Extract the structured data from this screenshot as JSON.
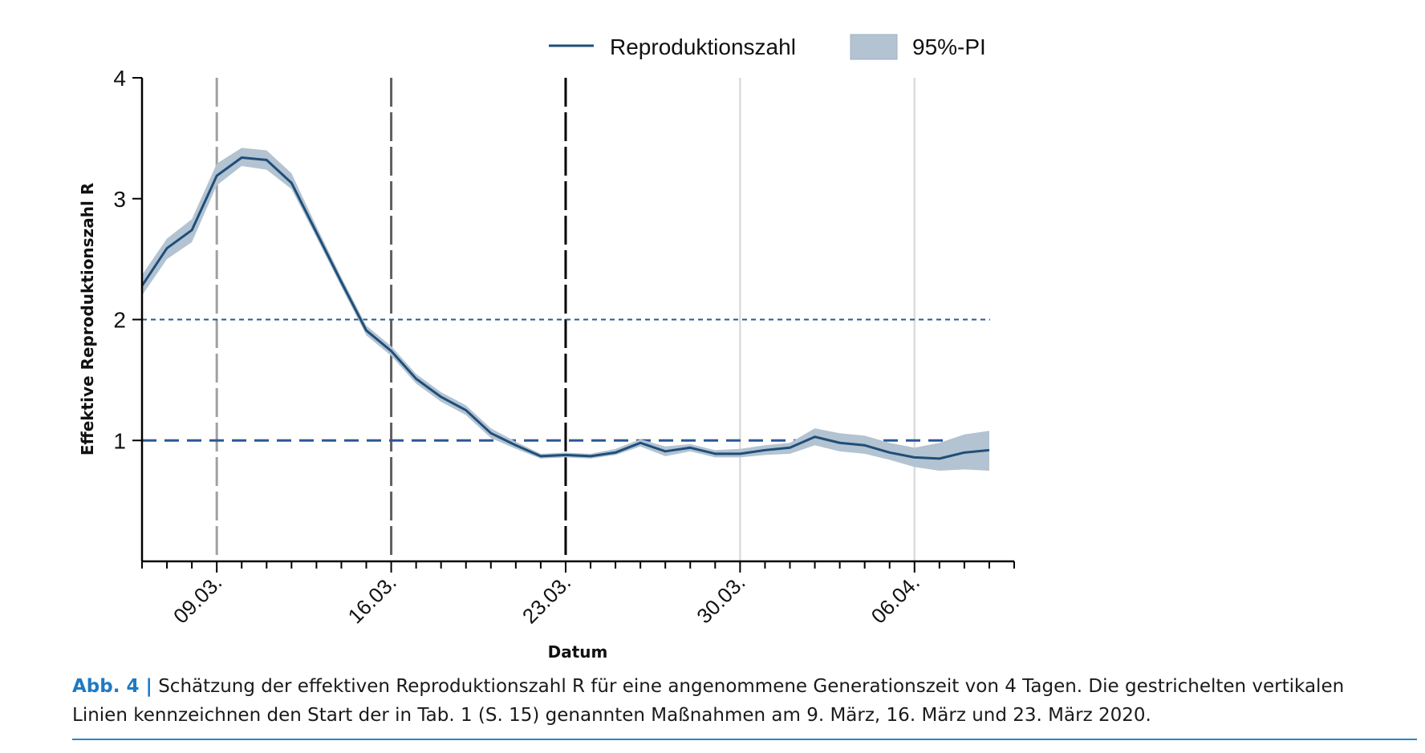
{
  "chart_data": {
    "type": "line",
    "title": "",
    "xlabel": "Datum",
    "ylabel": "Effektive Reproduktionszahl R",
    "ylim": [
      0,
      4
    ],
    "xlim": [
      "06.03.",
      "10.04."
    ],
    "yticks": [
      1,
      2,
      3,
      4
    ],
    "xtick_labels": [
      "09.03.",
      "16.03.",
      "23.03.",
      "30.03.",
      "06.04."
    ],
    "xtick_day_index": [
      3,
      10,
      17,
      24,
      31
    ],
    "x_day_count": 35,
    "legend": {
      "placement": "top-center",
      "entries": [
        {
          "label": "Reproduktionszahl",
          "kind": "line",
          "color": "#1f4e79"
        },
        {
          "label": "95%-PI",
          "kind": "band",
          "color": "#b3c3d1"
        }
      ]
    },
    "x": [
      "06.03.",
      "07.03.",
      "08.03.",
      "09.03.",
      "10.03.",
      "11.03.",
      "12.03.",
      "13.03.",
      "14.03.",
      "15.03.",
      "16.03.",
      "17.03.",
      "18.03.",
      "19.03.",
      "20.03.",
      "21.03.",
      "22.03.",
      "23.03.",
      "24.03.",
      "25.03.",
      "26.03.",
      "27.03.",
      "28.03.",
      "29.03.",
      "30.03.",
      "31.03.",
      "01.04.",
      "02.04.",
      "03.04.",
      "04.04.",
      "05.04.",
      "06.04.",
      "07.04.",
      "08.04.",
      "09.04."
    ],
    "series": [
      {
        "name": "Reproduktionszahl",
        "color": "#1f4e79",
        "values": [
          2.28,
          2.59,
          2.74,
          3.19,
          3.34,
          3.32,
          3.13,
          2.72,
          2.31,
          1.91,
          1.74,
          1.51,
          1.36,
          1.25,
          1.06,
          0.96,
          0.87,
          0.88,
          0.87,
          0.9,
          0.98,
          0.91,
          0.94,
          0.89,
          0.89,
          0.92,
          0.94,
          1.03,
          0.98,
          0.96,
          0.9,
          0.86,
          0.85,
          0.9,
          0.92
        ]
      },
      {
        "name": "95%-PI",
        "color": "#b3c3d1",
        "lower": [
          2.2,
          2.5,
          2.64,
          3.11,
          3.27,
          3.24,
          3.08,
          2.68,
          2.27,
          1.87,
          1.7,
          1.47,
          1.32,
          1.21,
          1.02,
          0.93,
          0.85,
          0.86,
          0.85,
          0.88,
          0.95,
          0.87,
          0.91,
          0.86,
          0.86,
          0.88,
          0.89,
          0.96,
          0.91,
          0.89,
          0.84,
          0.78,
          0.75,
          0.76,
          0.75
        ],
        "upper": [
          2.37,
          2.67,
          2.83,
          3.29,
          3.42,
          3.4,
          3.21,
          2.77,
          2.35,
          1.95,
          1.78,
          1.55,
          1.4,
          1.29,
          1.1,
          0.99,
          0.89,
          0.9,
          0.89,
          0.93,
          1.01,
          0.95,
          0.97,
          0.92,
          0.93,
          0.96,
          0.98,
          1.1,
          1.06,
          1.04,
          0.98,
          0.94,
          0.98,
          1.05,
          1.08
        ]
      }
    ],
    "reference_lines": [
      {
        "axis": "y",
        "value": 2,
        "style": "dotted",
        "color": "#2b5797"
      },
      {
        "axis": "y",
        "value": 1,
        "style": "dashed",
        "color": "#2b5797"
      }
    ],
    "vertical_lines": [
      {
        "date": "09.03.",
        "day_index": 3,
        "style": "dashed",
        "color": "#a0a0a0"
      },
      {
        "date": "16.03.",
        "day_index": 10,
        "style": "dashed",
        "color": "#606060"
      },
      {
        "date": "23.03.",
        "day_index": 17,
        "style": "dashed",
        "color": "#000000"
      },
      {
        "date": "30.03.",
        "day_index": 24,
        "style": "solid",
        "color": "#dcdcdc"
      },
      {
        "date": "06.04.",
        "day_index": 31,
        "style": "solid",
        "color": "#dcdcdc"
      }
    ]
  },
  "caption": {
    "lead": "Abb. 4 |",
    "text": " Schätzung der effektiven Reproduktionszahl R für eine angenommene Generationszeit von 4 Tagen. Die gestrichelten vertikalen Linien kennzeichnen den Start der in Tab. 1 (S. 15) genannten Maßnahmen am 9. März, 16. März und 23. März 2020."
  }
}
